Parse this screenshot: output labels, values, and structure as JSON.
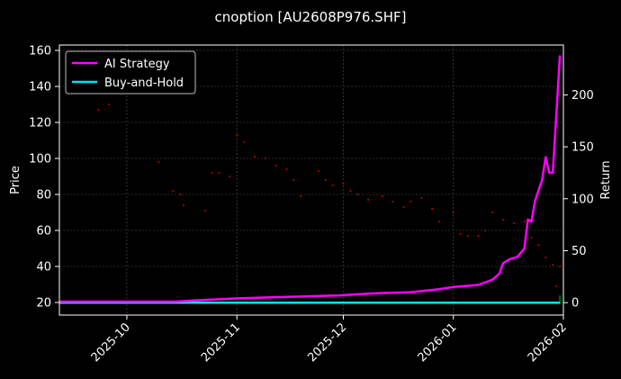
{
  "chart_data": {
    "type": "line",
    "title": "cnoption [AU2608P976.SHF]",
    "x_axis": {
      "ticks": [
        "2025-10",
        "2025-11",
        "2025-12",
        "2026-01",
        "2026-02"
      ],
      "range": [
        "2025-09-12",
        "2026-02-01"
      ]
    },
    "y_left": {
      "label": "Price",
      "range": [
        13,
        163
      ],
      "ticks": [
        20,
        40,
        60,
        80,
        100,
        120,
        140,
        160
      ]
    },
    "y_right": {
      "label": "Return",
      "range": [
        -12,
        248
      ],
      "ticks": [
        0,
        50,
        100,
        150,
        200
      ]
    },
    "grid": true,
    "legend": {
      "position": "top-left",
      "entries": [
        "AI Strategy",
        "Buy-and-Hold"
      ]
    },
    "colors": {
      "ai_strategy": "#ff00ff",
      "buy_and_hold": "#00e5ee",
      "price_dots": "#cc0000",
      "buy_marker": "#00cc00"
    },
    "series": [
      {
        "name": "AI Strategy",
        "axis": "right",
        "points": [
          [
            "2025-09-12",
            1
          ],
          [
            "2025-10-15",
            1
          ],
          [
            "2025-10-20",
            2
          ],
          [
            "2025-10-25",
            3
          ],
          [
            "2025-11-01",
            4
          ],
          [
            "2025-11-10",
            5
          ],
          [
            "2025-11-20",
            6
          ],
          [
            "2025-11-30",
            7
          ],
          [
            "2025-12-10",
            9
          ],
          [
            "2025-12-20",
            10
          ],
          [
            "2025-12-28",
            13
          ],
          [
            "2026-01-01",
            15
          ],
          [
            "2026-01-08",
            17
          ],
          [
            "2026-01-12",
            22
          ],
          [
            "2026-01-14",
            28
          ],
          [
            "2026-01-15",
            38
          ],
          [
            "2026-01-17",
            42
          ],
          [
            "2026-01-19",
            44
          ],
          [
            "2026-01-21",
            52
          ],
          [
            "2026-01-22",
            80
          ],
          [
            "2026-01-23",
            78
          ],
          [
            "2026-01-24",
            98
          ],
          [
            "2026-01-26",
            118
          ],
          [
            "2026-01-27",
            140
          ],
          [
            "2026-01-28",
            125
          ],
          [
            "2026-01-29",
            125
          ],
          [
            "2026-01-30",
            180
          ],
          [
            "2026-01-31",
            238
          ]
        ]
      },
      {
        "name": "Buy-and-Hold",
        "axis": "right",
        "points": [
          [
            "2025-09-12",
            0
          ],
          [
            "2026-01-31",
            0
          ]
        ]
      },
      {
        "name": "",
        "axis": "left",
        "style": "dots",
        "points": [
          [
            "2025-09-23",
            127
          ],
          [
            "2025-09-26",
            130
          ],
          [
            "2025-10-10",
            98
          ],
          [
            "2025-10-14",
            82
          ],
          [
            "2025-10-16",
            80
          ],
          [
            "2025-10-17",
            74
          ],
          [
            "2025-10-23",
            71
          ],
          [
            "2025-10-25",
            92
          ],
          [
            "2025-10-27",
            92
          ],
          [
            "2025-10-30",
            90
          ],
          [
            "2025-11-01",
            113
          ],
          [
            "2025-11-03",
            109
          ],
          [
            "2025-11-06",
            101
          ],
          [
            "2025-11-09",
            100
          ],
          [
            "2025-11-12",
            96
          ],
          [
            "2025-11-15",
            94
          ],
          [
            "2025-11-17",
            88
          ],
          [
            "2025-11-19",
            79
          ],
          [
            "2025-11-24",
            93
          ],
          [
            "2025-11-26",
            88
          ],
          [
            "2025-11-28",
            85
          ],
          [
            "2025-12-01",
            86
          ],
          [
            "2025-12-03",
            82
          ],
          [
            "2025-12-05",
            80
          ],
          [
            "2025-12-08",
            77
          ],
          [
            "2025-12-12",
            79
          ],
          [
            "2025-12-15",
            76
          ],
          [
            "2025-12-18",
            73
          ],
          [
            "2025-12-20",
            76
          ],
          [
            "2025-12-23",
            78
          ],
          [
            "2025-12-26",
            72
          ],
          [
            "2025-12-28",
            65
          ],
          [
            "2026-01-01",
            70
          ],
          [
            "2026-01-03",
            58
          ],
          [
            "2026-01-05",
            57
          ],
          [
            "2026-01-08",
            57
          ],
          [
            "2026-01-10",
            60
          ],
          [
            "2026-01-12",
            70
          ],
          [
            "2026-01-15",
            66
          ],
          [
            "2026-01-18",
            64
          ],
          [
            "2026-01-21",
            65
          ],
          [
            "2026-01-23",
            56
          ],
          [
            "2026-01-25",
            52
          ],
          [
            "2026-01-27",
            45
          ],
          [
            "2026-01-29",
            41
          ],
          [
            "2026-01-30",
            29
          ],
          [
            "2026-01-31",
            40
          ]
        ]
      }
    ],
    "markers": [
      {
        "type": "buy",
        "x": "2026-01-31",
        "axis": "right"
      }
    ]
  }
}
